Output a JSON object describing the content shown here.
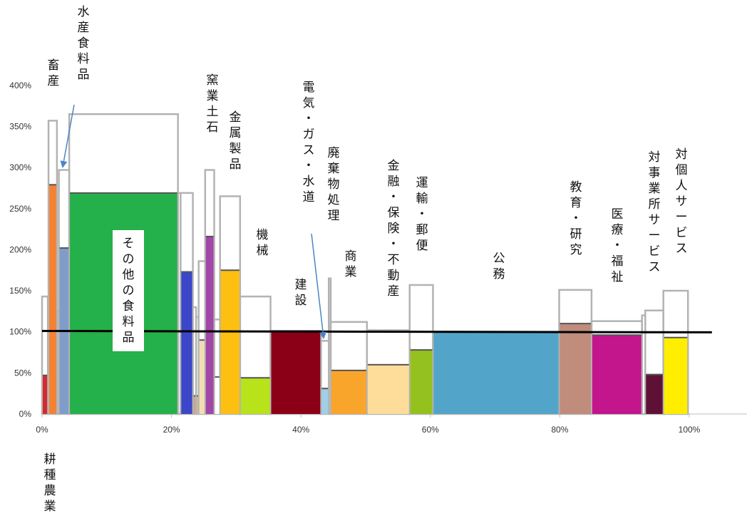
{
  "chart_data": {
    "type": "bar",
    "subtype": "variable-width",
    "xlim": [
      0,
      110
    ],
    "ylim": [
      0,
      400
    ],
    "y_ticks": [
      "0%",
      "50%",
      "100%",
      "150%",
      "200%",
      "250%",
      "300%",
      "350%",
      "400%"
    ],
    "x_ticks": [
      "0%",
      "20%",
      "40%",
      "60%",
      "80%",
      "100%"
    ],
    "reference_line": 100,
    "categories": [
      {
        "label": "耕種農業",
        "x0": 0.0,
        "x1": 0.9,
        "value": 47,
        "outline": 143,
        "color": "#d42a2f"
      },
      {
        "label": "",
        "x0": 0.9,
        "x1": 1.0,
        "value": 0,
        "outline": 143,
        "color": "#ffffff"
      },
      {
        "label": "畜産",
        "x0": 1.0,
        "x1": 2.3,
        "value": 279,
        "outline": 357,
        "color": "#f58232"
      },
      {
        "label": "",
        "x0": 2.3,
        "x1": 2.6,
        "value": 0,
        "outline": 125,
        "color": "#ffffff"
      },
      {
        "label": "水産食料品",
        "x0": 2.6,
        "x1": 4.2,
        "value": 202,
        "outline": 297,
        "color": "#7f9dc8"
      },
      {
        "label": "その他の食料品",
        "x0": 4.2,
        "x1": 21.0,
        "value": 269,
        "outline": 365,
        "color": "#24b04a"
      },
      {
        "label": "",
        "x0": 21.0,
        "x1": 21.4,
        "value": 0,
        "outline": 269,
        "color": "#ffffff"
      },
      {
        "label": "",
        "x0": 21.4,
        "x1": 23.3,
        "value": 173,
        "outline": 269,
        "color": "#3b47c8"
      },
      {
        "label": "",
        "x0": 23.3,
        "x1": 23.8,
        "value": 22,
        "outline": 130,
        "color": "#c7a98a"
      },
      {
        "label": "",
        "x0": 23.8,
        "x1": 24.2,
        "value": 22,
        "outline": 118,
        "color": "#d7b89b"
      },
      {
        "label": "",
        "x0": 24.2,
        "x1": 25.2,
        "value": 90,
        "outline": 186,
        "color": "#f3deb2"
      },
      {
        "label": "窯業土石",
        "x0": 25.2,
        "x1": 26.6,
        "value": 216,
        "outline": 297,
        "color": "#a246a8"
      },
      {
        "label": "",
        "x0": 26.6,
        "x1": 27.5,
        "value": 45,
        "outline": 115,
        "color": "#ffffff"
      },
      {
        "label": "金属製品",
        "x0": 27.5,
        "x1": 30.6,
        "value": 175,
        "outline": 265,
        "color": "#fdc010"
      },
      {
        "label": "機械",
        "x0": 30.6,
        "x1": 35.3,
        "value": 44,
        "outline": 143,
        "color": "#b8e31a"
      },
      {
        "label": "建設",
        "x0": 35.3,
        "x1": 43.1,
        "value": 101,
        "outline": 101,
        "color": "#8b0016"
      },
      {
        "label": "電気・ガス・水道",
        "x0": 43.1,
        "x1": 44.3,
        "value": 31,
        "outline": 89,
        "color": "#9fd0e6"
      },
      {
        "label": "廃棄物処理",
        "x0": 44.3,
        "x1": 44.6,
        "value": 0,
        "outline": 165,
        "color": "#ffffff"
      },
      {
        "label": "商業",
        "x0": 44.6,
        "x1": 50.2,
        "value": 53,
        "outline": 112,
        "color": "#f9a52c"
      },
      {
        "label": "金融・保険・不動産",
        "x0": 50.2,
        "x1": 56.8,
        "value": 60,
        "outline": 102,
        "color": "#fedd9a"
      },
      {
        "label": "運輸・郵便",
        "x0": 56.8,
        "x1": 60.4,
        "value": 78,
        "outline": 157,
        "color": "#95c11f"
      },
      {
        "label": "公務",
        "x0": 60.4,
        "x1": 79.9,
        "value": 100,
        "outline": 100,
        "color": "#52a5c8"
      },
      {
        "label": "教育・研究",
        "x0": 79.9,
        "x1": 84.9,
        "value": 110,
        "outline": 151,
        "color": "#c08c7c"
      },
      {
        "label": "医療・福祉",
        "x0": 84.9,
        "x1": 92.7,
        "value": 96,
        "outline": 113,
        "color": "#c3158c"
      },
      {
        "label": "",
        "x0": 92.7,
        "x1": 93.2,
        "value": 0,
        "outline": 120,
        "color": "#ffffff"
      },
      {
        "label": "対事業所サービス",
        "x0": 93.2,
        "x1": 96.0,
        "value": 48,
        "outline": 126,
        "color": "#5f1135"
      },
      {
        "label": "対個人サービス",
        "x0": 96.0,
        "x1": 99.8,
        "value": 93,
        "outline": 150,
        "color": "#ffee00"
      }
    ],
    "annotations": [
      "水産食料品",
      "電気・ガス・水道"
    ]
  }
}
